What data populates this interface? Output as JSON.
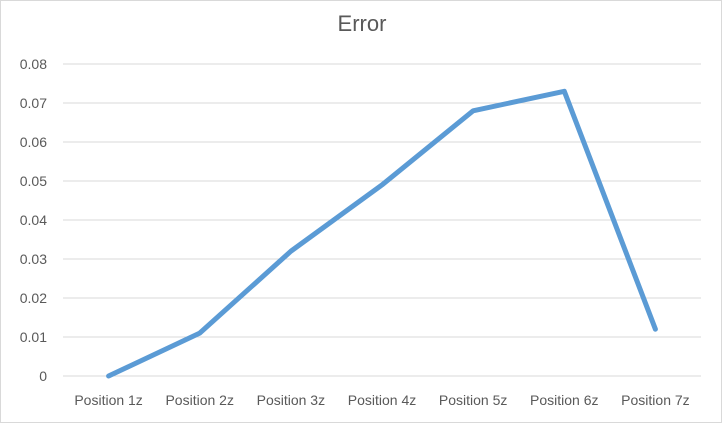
{
  "chart_data": {
    "type": "line",
    "title": "Error",
    "xlabel": "",
    "ylabel": "",
    "categories": [
      "Position 1z",
      "Position 2z",
      "Position 3z",
      "Position 4z",
      "Position 5z",
      "Position 6z",
      "Position 7z"
    ],
    "series": [
      {
        "values": [
          0.0,
          0.011,
          0.032,
          0.049,
          0.068,
          0.073,
          0.012
        ],
        "color": "#5b9bd5"
      }
    ],
    "ylim": [
      0,
      0.08
    ],
    "yticks": [
      "0",
      "0.01",
      "0.02",
      "0.03",
      "0.04",
      "0.05",
      "0.06",
      "0.07",
      "0.08"
    ],
    "grid": true,
    "legend": "none"
  }
}
